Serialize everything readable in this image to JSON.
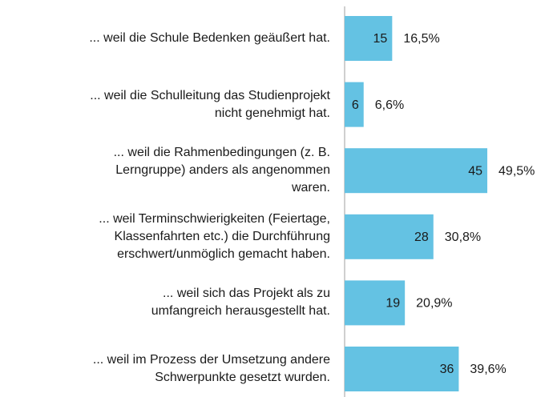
{
  "chart_data": {
    "type": "bar",
    "orientation": "horizontal",
    "color": "#64c2e3",
    "categories": [
      "... weil die Schule Bedenken geäußert hat.",
      "... weil die Schulleitung das Studienprojekt\nnicht genehmigt hat.",
      "... weil die Rahmenbedingungen (z. B.\nLerngruppe) anders als angenommen\nwaren.",
      "... weil Terminschwierigkeiten (Feiertage,\nKlassenfahrten etc.) die Durchführung\nerschwert/unmöglich gemacht haben.",
      "... weil sich das Projekt als zu\numfangreich herausgestellt hat.",
      "... weil im Prozess der Umsetzung andere\nSchwerpunkte gesetzt wurden."
    ],
    "values": [
      15,
      6,
      45,
      28,
      19,
      36
    ],
    "percents": [
      16.5,
      6.6,
      49.5,
      30.8,
      20.9,
      39.6
    ],
    "percent_labels": [
      "16,5%",
      "6,6%",
      "49,5%",
      "30,8%",
      "20,9%",
      "39,6%"
    ]
  }
}
